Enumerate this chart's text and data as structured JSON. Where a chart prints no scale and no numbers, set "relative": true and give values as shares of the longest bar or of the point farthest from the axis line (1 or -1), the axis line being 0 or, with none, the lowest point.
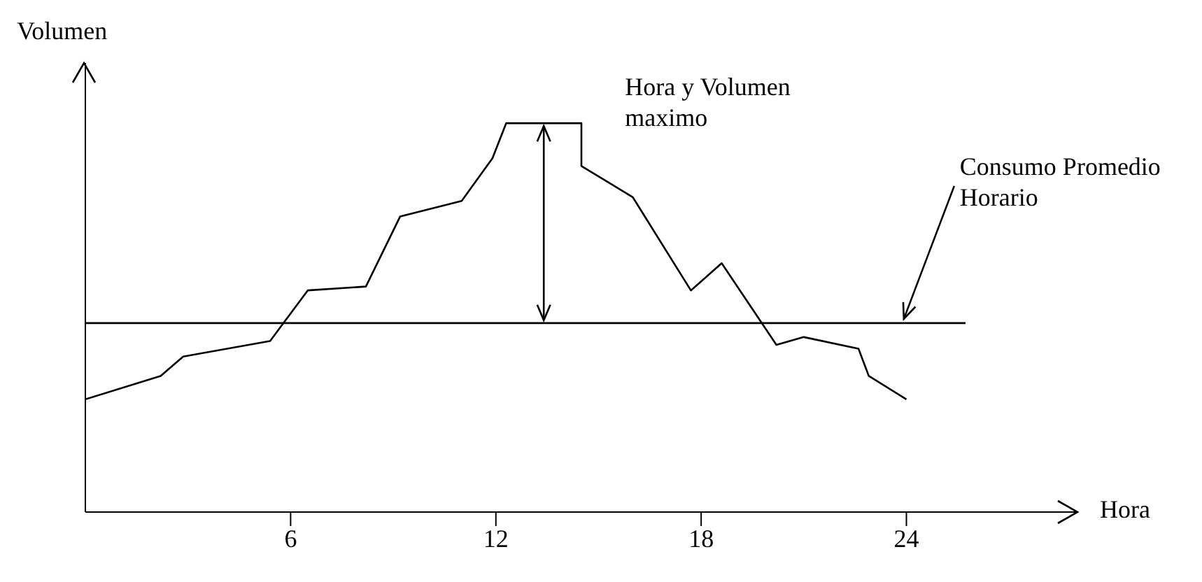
{
  "chart_data": {
    "type": "line",
    "relative": true,
    "xlabel": "Hora",
    "ylabel": "Volumen",
    "x": [
      0,
      2.2,
      2.86,
      5.4,
      6.5,
      8.2,
      9.2,
      11.0,
      11.9,
      12.3,
      13.6,
      14.5,
      14.5,
      16,
      17.7,
      18.6,
      20.2,
      21,
      22.6,
      22.9,
      24
    ],
    "series": [
      {
        "color": "#000000",
        "values": [
          0.29,
          0.35,
          0.4,
          0.44,
          0.57,
          0.58,
          0.76,
          0.8,
          0.91,
          1.0,
          1.0,
          1.0,
          0.89,
          0.81,
          0.57,
          0.64,
          0.43,
          0.45,
          0.42,
          0.35,
          0.29
        ]
      }
    ],
    "xlim": [
      0,
      29
    ],
    "xticks": [
      6,
      12,
      18,
      24
    ],
    "ref_lines": [
      {
        "axis": "y",
        "value": 0.486,
        "label": "Consumo Promedio Horario",
        "color": "#000000"
      }
    ],
    "annotations": [
      "Hora y Volumen maximo"
    ],
    "tick_labels": "x",
    "marker": "none",
    "line_style": "solid"
  }
}
